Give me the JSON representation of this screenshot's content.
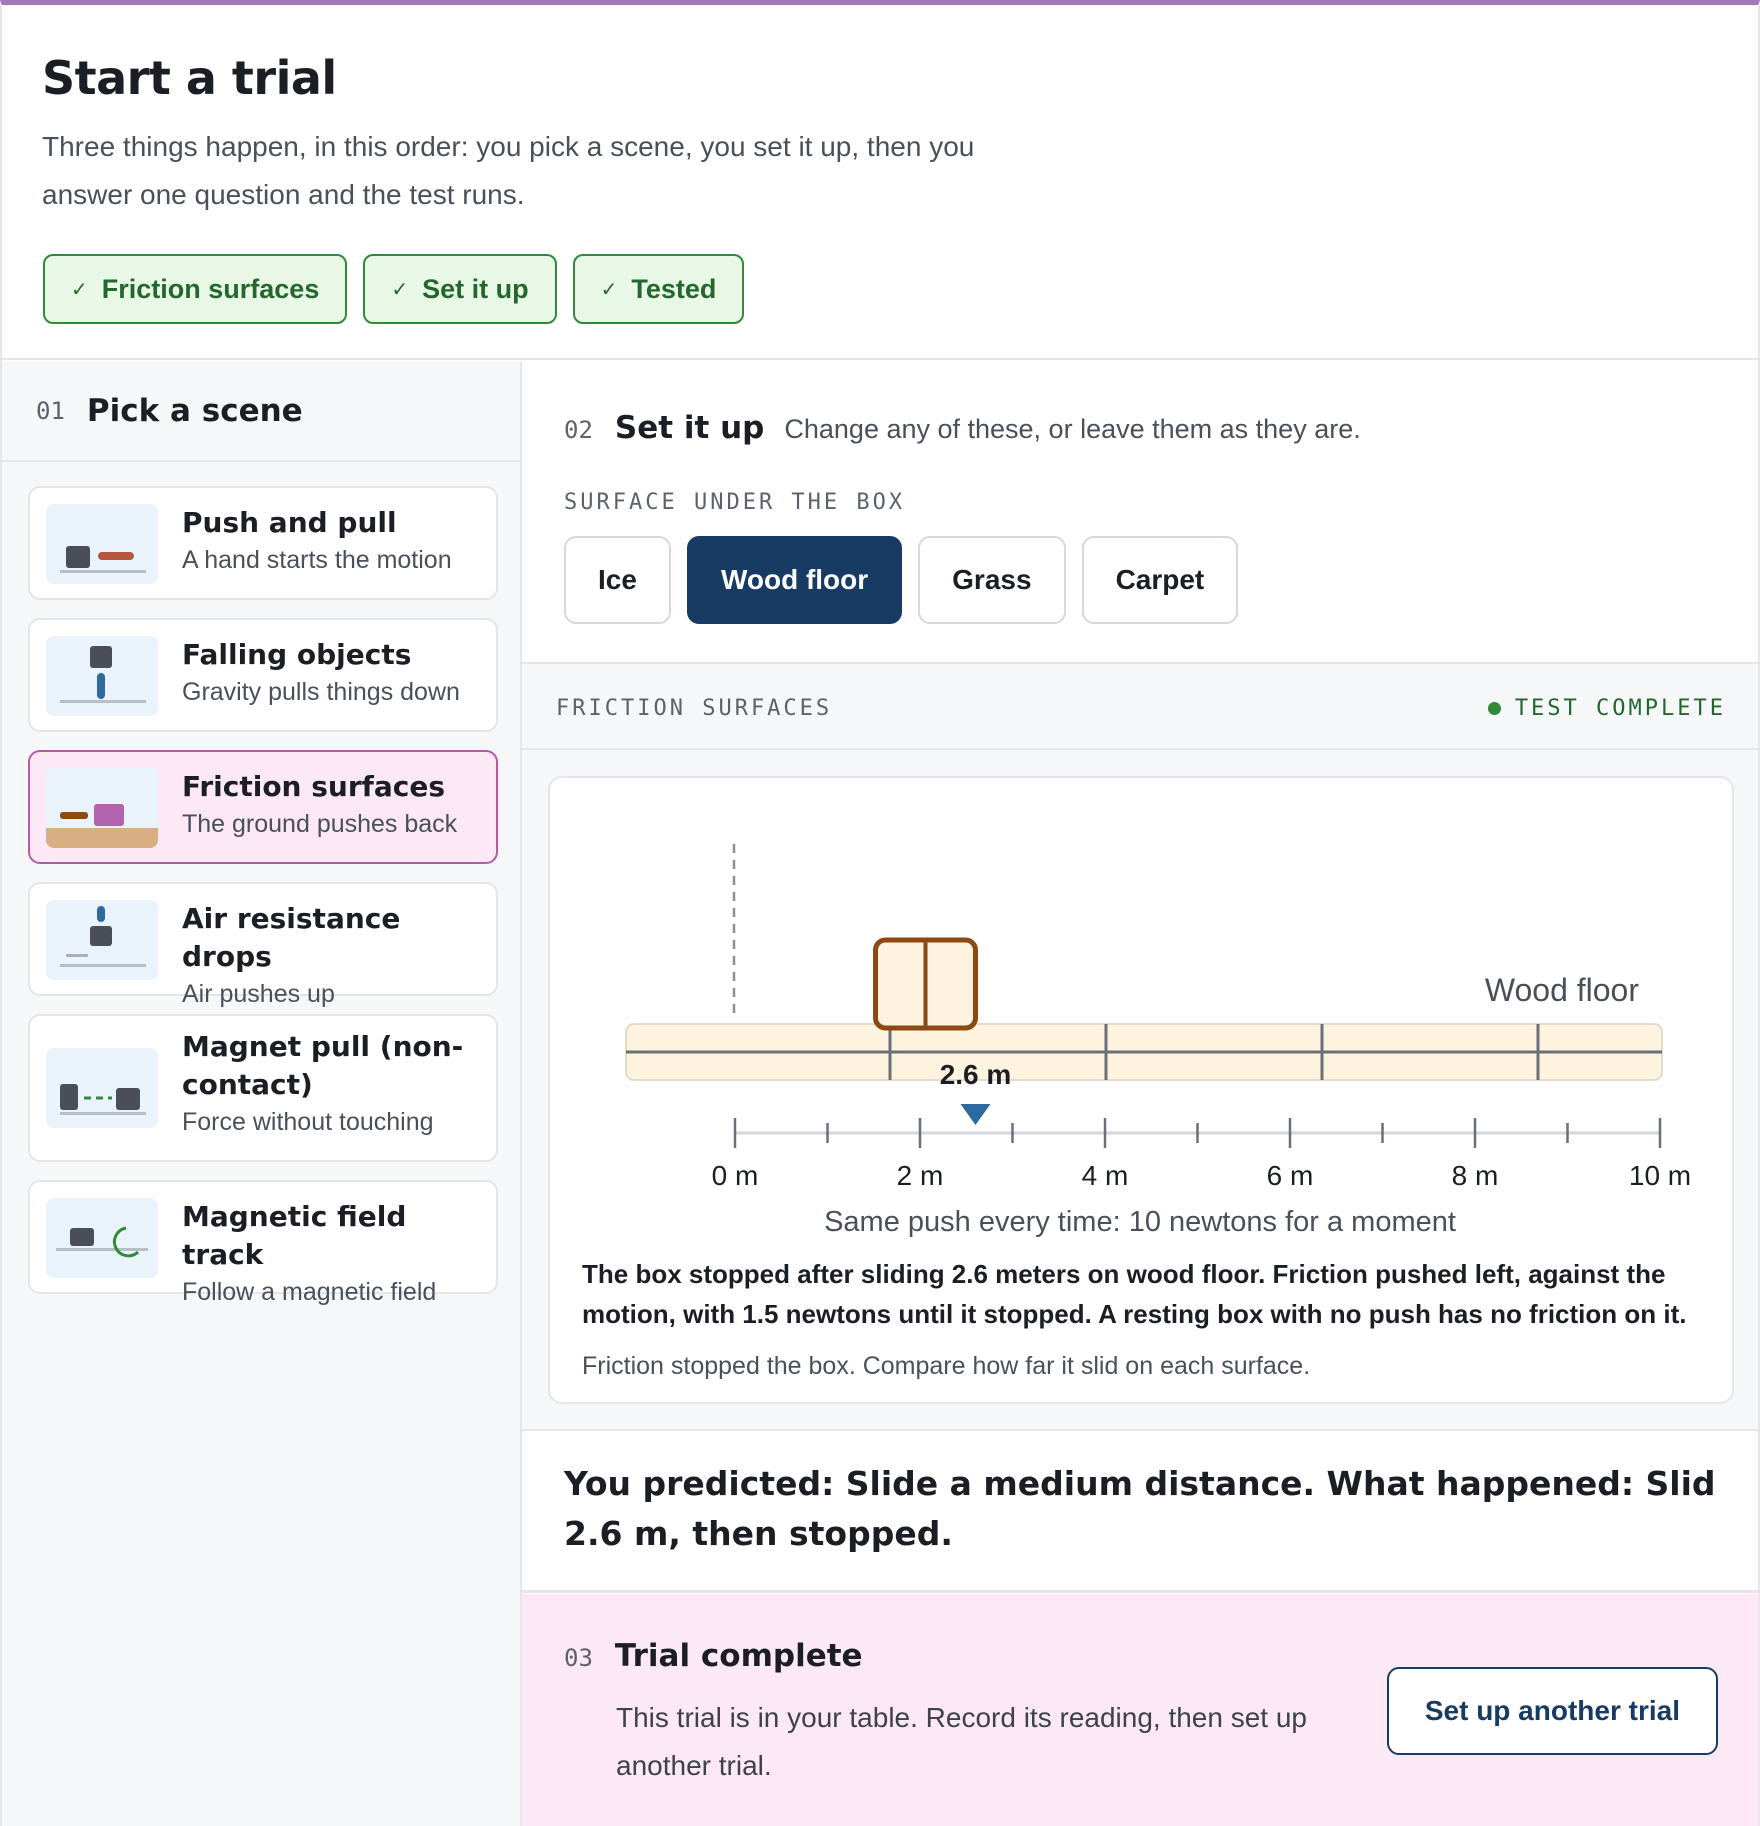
{
  "header": {
    "title": "Start a trial",
    "subtitle": "Three things happen, in this order: you pick a scene, you set it up, then you answer one question and the test runs.",
    "steps": [
      {
        "label": "Friction surfaces"
      },
      {
        "label": "Set it up"
      },
      {
        "label": "Tested"
      }
    ]
  },
  "sidebar": {
    "step_num": "01",
    "title": "Pick a scene",
    "scenes": [
      {
        "title": "Push and pull",
        "desc": "A hand starts the motion"
      },
      {
        "title": "Falling objects",
        "desc": "Gravity pulls things down"
      },
      {
        "title": "Friction surfaces",
        "desc": "The ground pushes back",
        "selected": true
      },
      {
        "title": "Air resistance drops",
        "desc": "Air pushes up"
      },
      {
        "title": "Magnet pull (non-contact)",
        "desc": "Force without touching"
      },
      {
        "title": "Magnetic field track",
        "desc": "Follow a magnetic field"
      }
    ]
  },
  "setup": {
    "step_num": "02",
    "title": "Set it up",
    "hint": "Change any of these, or leave them as they are.",
    "surface_label": "SURFACE UNDER THE BOX",
    "surfaces": [
      "Ice",
      "Wood floor",
      "Grass",
      "Carpet"
    ],
    "selected_surface": "Wood floor"
  },
  "simulation": {
    "label": "FRICTION SURFACES",
    "status": "TEST COMPLETE",
    "surface_name": "Wood floor",
    "distance_label": "2.6 m",
    "distance_m": 2.6,
    "axis_max_m": 10,
    "axis_ticks": [
      "0 m",
      "2 m",
      "4 m",
      "6 m",
      "8 m",
      "10 m"
    ],
    "push_caption": "Same push every time: 10 newtons for a moment",
    "result": "The box stopped after sliding 2.6 meters on wood floor. Friction pushed left, against the motion, with 1.5 newtons until it stopped. A resting box with no push has no friction on it.",
    "note": "Friction stopped the box. Compare how far it slid on each surface.",
    "colors": {
      "floor": "#fdf3df",
      "box": "#8a4a12",
      "marker": "#2c6a9f"
    }
  },
  "prediction": {
    "text": "You predicted: Slide a medium distance. What happened: Slid 2.6 m, then stopped."
  },
  "complete": {
    "step_num": "03",
    "title": "Trial complete",
    "text": "This trial is in your table. Record its reading, then set up another trial.",
    "button_label": "Set up another trial"
  }
}
